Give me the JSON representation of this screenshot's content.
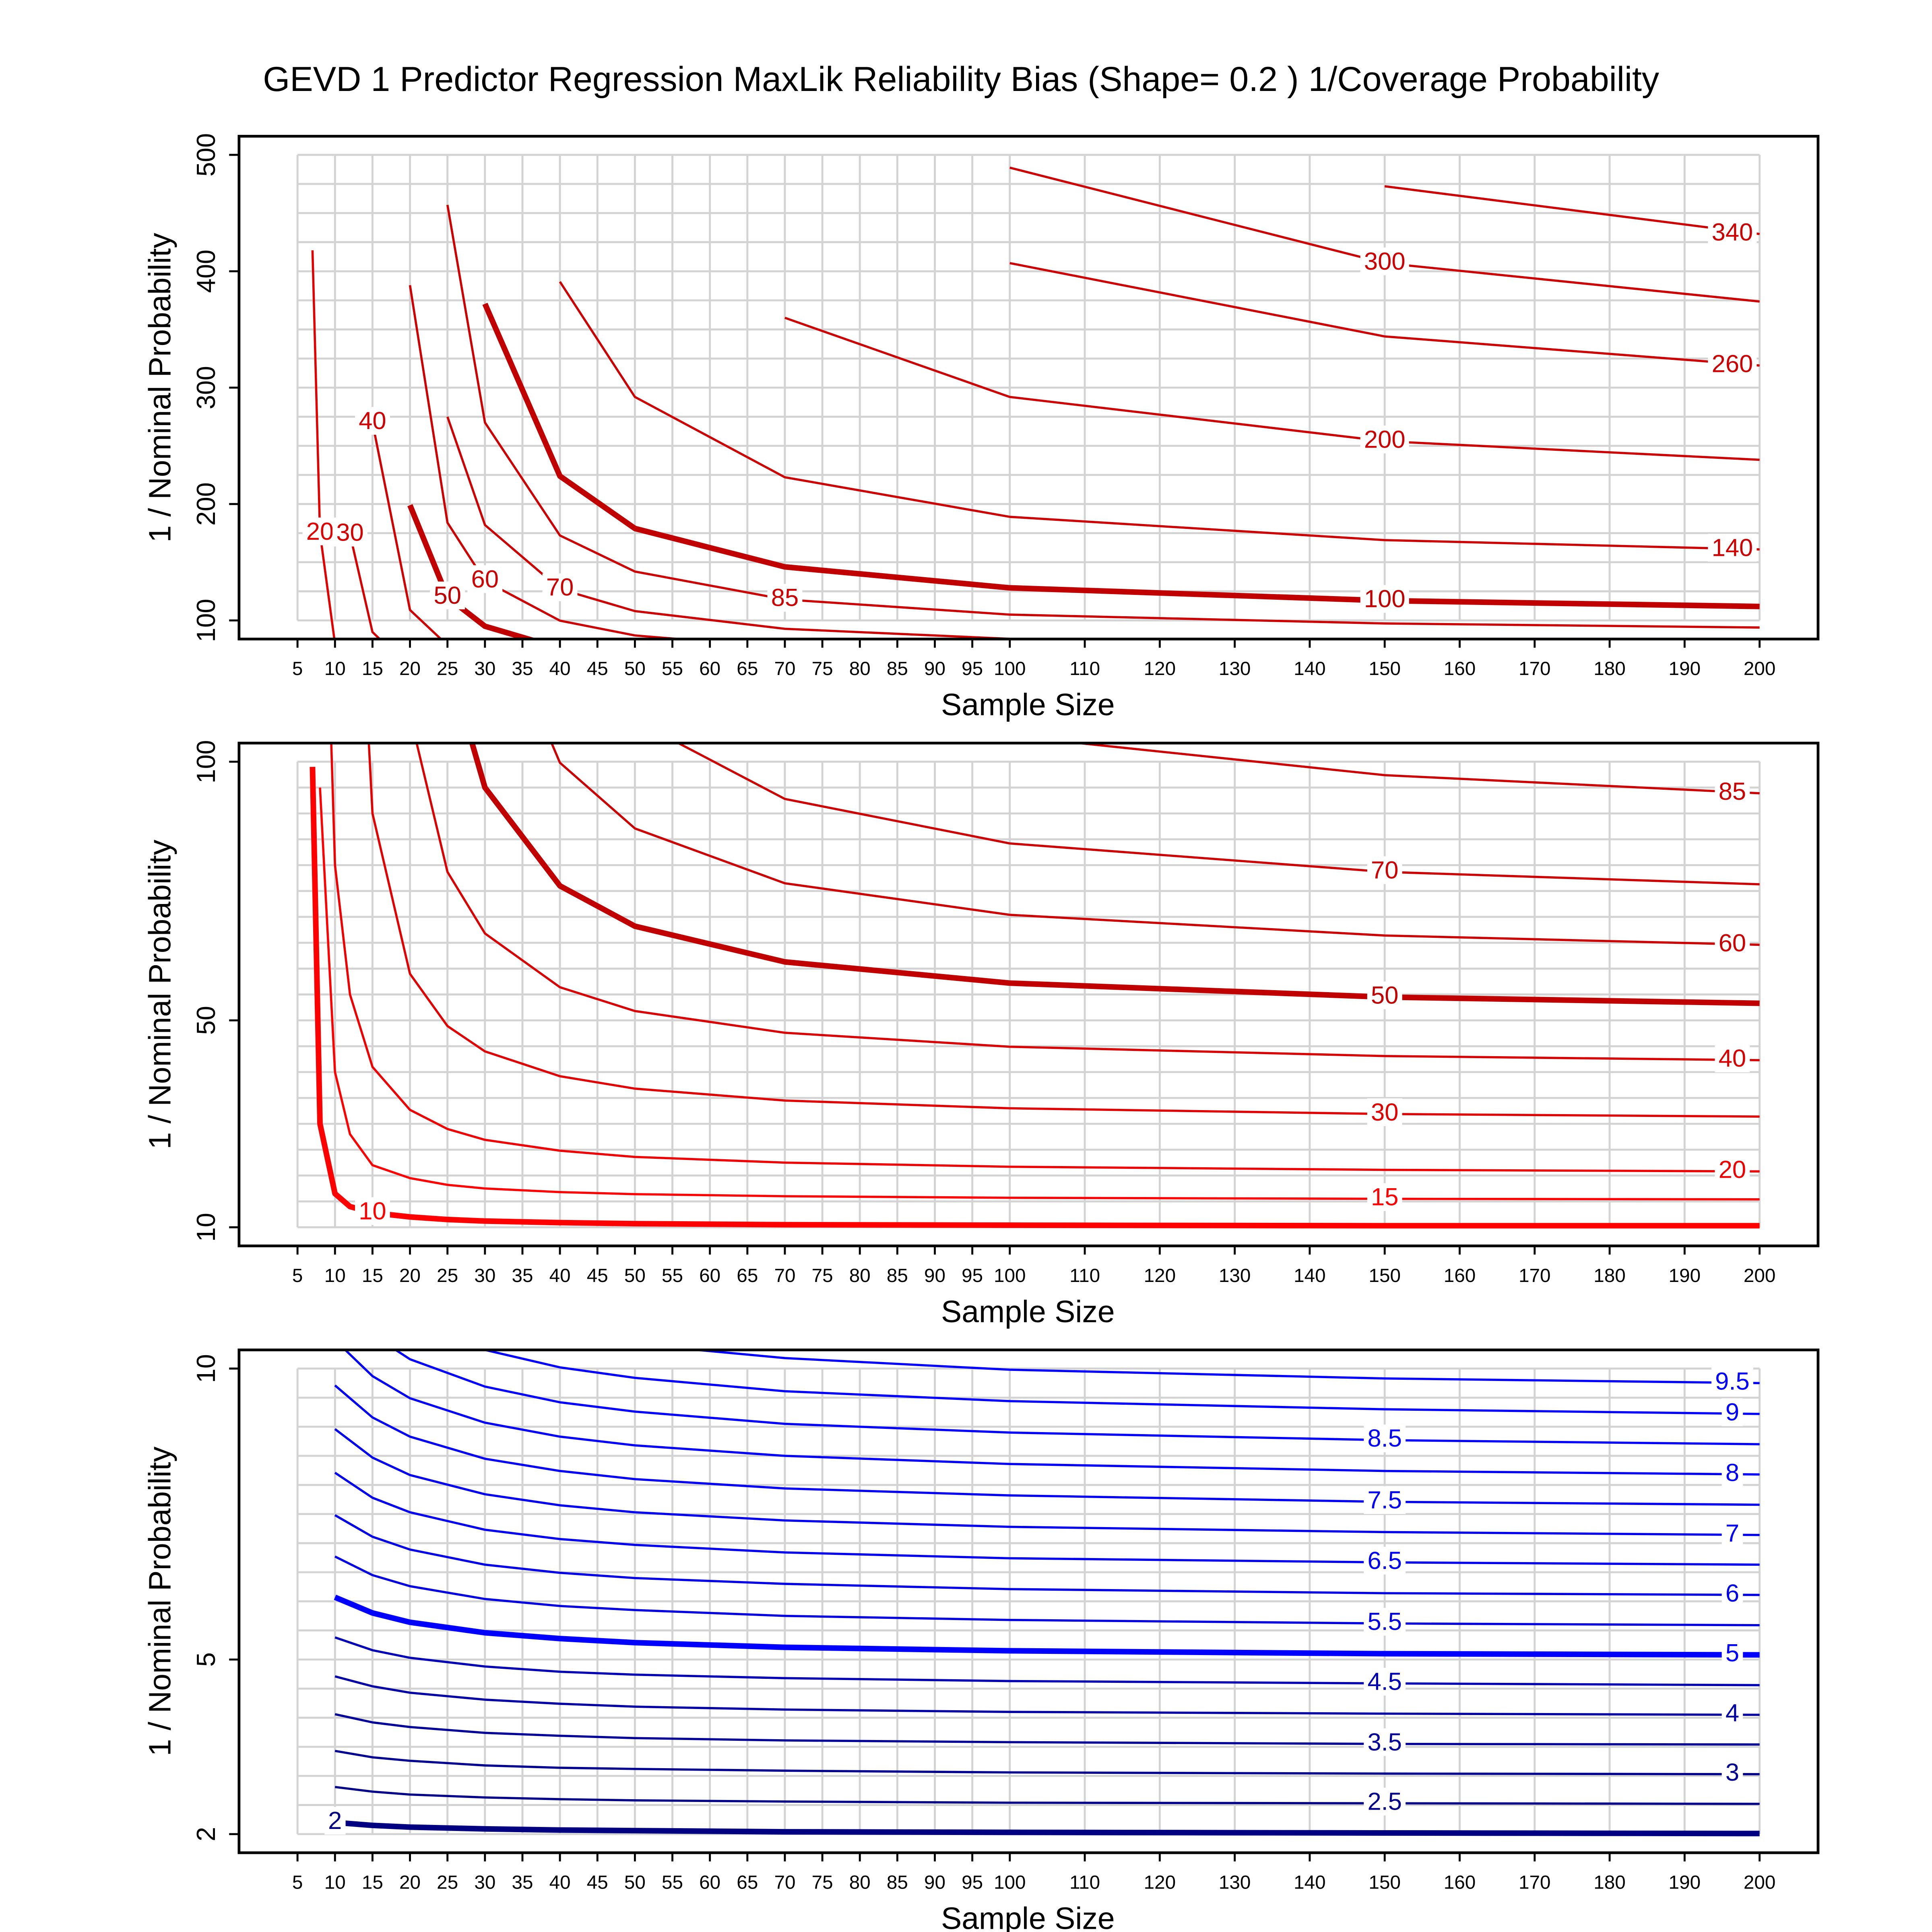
{
  "chart_data": [
    {
      "type": "contour",
      "title": "GEVD 1 Predictor Regression MaxLik Reliability Bias (Shape= 0.2 ) 1/Coverage Probability",
      "xlabel": "Sample Size",
      "ylabel": "1 / Nominal Probability",
      "xlim": [
        -2.8,
        207.8
      ],
      "ylim": [
        84,
        516
      ],
      "xticks": [
        5,
        10,
        15,
        20,
        25,
        30,
        35,
        40,
        45,
        50,
        55,
        60,
        65,
        70,
        75,
        80,
        85,
        90,
        95,
        100,
        110,
        120,
        130,
        140,
        150,
        160,
        170,
        180,
        190,
        200
      ],
      "yticks": [
        100,
        200,
        300,
        400,
        500
      ],
      "grid": true,
      "ygrid": [
        100,
        125,
        150,
        175,
        200,
        225,
        250,
        275,
        300,
        325,
        350,
        375,
        400,
        425,
        450,
        475,
        500
      ],
      "x": [
        7,
        8,
        10,
        12,
        15,
        20,
        25,
        30,
        40,
        50,
        70,
        100,
        150,
        200
      ],
      "contours": [
        {
          "level": 20,
          "color": "#e00000",
          "thick": false,
          "values": [
            418,
            175,
            80,
            55,
            41,
            32.7,
            29,
            26.9,
            24.8,
            23.6,
            22.5,
            21.7,
            21.1,
            20.8
          ]
        },
        {
          "level": 30,
          "color": "#d40000",
          "thick": false,
          "values": [
            null,
            null,
            null,
            174,
            90,
            59,
            48.9,
            44,
            39.2,
            36.8,
            34.5,
            33,
            31.9,
            31.4
          ]
        },
        {
          "level": 40,
          "color": "#d00000",
          "thick": false,
          "values": [
            null,
            null,
            null,
            null,
            270,
            109,
            78.7,
            66.8,
            56.4,
            51.8,
            47.6,
            44.9,
            43.1,
            42.3
          ]
        },
        {
          "level": 50,
          "color": "#c00000",
          "thick": true,
          "values": [
            null,
            null,
            null,
            null,
            null,
            199,
            120,
            95,
            76,
            68.2,
            61.3,
            57.2,
            54.5,
            53.3
          ]
        },
        {
          "level": 60,
          "color": "#cc0000",
          "thick": false,
          "values": [
            null,
            null,
            null,
            null,
            null,
            388,
            184,
            134,
            99.8,
            87.1,
            76.5,
            70.4,
            66.4,
            64.6
          ]
        },
        {
          "level": 70,
          "color": "#cc0000",
          "thick": false,
          "values": [
            null,
            null,
            null,
            null,
            null,
            null,
            275,
            182,
            127,
            108,
            92.8,
            84.2,
            78.7,
            76.3
          ]
        },
        {
          "level": 85,
          "color": "#cc0000",
          "thick": false,
          "values": [
            null,
            null,
            null,
            null,
            null,
            null,
            457,
            270,
            173,
            142,
            118,
            105,
            97.4,
            93.9
          ]
        },
        {
          "level": 100,
          "color": "#c00000",
          "thick": true,
          "values": [
            null,
            null,
            null,
            null,
            null,
            null,
            null,
            372,
            224,
            179,
            146,
            128,
            117,
            112
          ]
        },
        {
          "level": 140,
          "color": "#cc0000",
          "thick": false,
          "values": [
            null,
            null,
            null,
            null,
            null,
            null,
            null,
            null,
            391,
            292,
            223,
            189,
            169,
            161
          ]
        },
        {
          "level": 200,
          "color": "#cc0000",
          "thick": false,
          "values": [
            null,
            null,
            null,
            null,
            null,
            null,
            null,
            null,
            null,
            null,
            360,
            292,
            254,
            238
          ]
        },
        {
          "level": 260,
          "color": "#cc0000",
          "thick": false,
          "values": [
            null,
            null,
            null,
            null,
            null,
            null,
            null,
            null,
            null,
            null,
            null,
            407,
            344,
            319
          ]
        },
        {
          "level": 300,
          "color": "#cc0000",
          "thick": false,
          "values": [
            null,
            null,
            null,
            null,
            null,
            null,
            null,
            null,
            null,
            null,
            null,
            489,
            407,
            374
          ]
        },
        {
          "level": 340,
          "color": "#cc0000",
          "thick": false,
          "values": [
            null,
            null,
            null,
            null,
            null,
            null,
            null,
            null,
            null,
            null,
            null,
            null,
            473,
            432
          ]
        }
      ]
    },
    {
      "type": "contour",
      "xlabel": "Sample Size",
      "ylabel": "1 / Nominal Probability",
      "xlim": [
        -2.8,
        207.8
      ],
      "ylim": [
        6.4,
        103.6
      ],
      "xticks": [
        5,
        10,
        15,
        20,
        25,
        30,
        35,
        40,
        45,
        50,
        55,
        60,
        65,
        70,
        75,
        80,
        85,
        90,
        95,
        100,
        110,
        120,
        130,
        140,
        150,
        160,
        170,
        180,
        190,
        200
      ],
      "yticks": [
        10,
        50,
        100
      ],
      "grid": true,
      "ygrid": [
        10,
        15,
        20,
        25,
        30,
        35,
        40,
        45,
        50,
        55,
        60,
        65,
        70,
        75,
        80,
        85,
        90,
        95,
        100
      ],
      "x": [
        7,
        8,
        10,
        12,
        15,
        20,
        25,
        30,
        40,
        50,
        70,
        100,
        150,
        200
      ],
      "contours": [
        {
          "level": 10,
          "color": "#ff0000",
          "thick": true,
          "values": [
            99,
            30,
            16.5,
            14,
            12.8,
            12,
            11.5,
            11.2,
            10.9,
            10.7,
            10.5,
            10.4,
            10.3,
            10.3
          ]
        },
        {
          "level": 15,
          "color": "#ff0000",
          "thick": false,
          "values": [
            null,
            95,
            40,
            28,
            22,
            19.5,
            18.2,
            17.5,
            16.8,
            16.4,
            16,
            15.7,
            15.5,
            15.4
          ]
        },
        {
          "level": 20,
          "color": "#ee0000",
          "thick": false,
          "values": [
            418,
            175,
            80,
            55,
            41,
            32.7,
            29,
            26.9,
            24.8,
            23.6,
            22.5,
            21.7,
            21.1,
            20.8
          ]
        },
        {
          "level": 30,
          "color": "#e00000",
          "thick": false,
          "values": [
            null,
            null,
            null,
            174,
            90,
            59,
            48.9,
            44,
            39.2,
            36.8,
            34.5,
            33,
            31.9,
            31.4
          ]
        },
        {
          "level": 40,
          "color": "#d80000",
          "thick": false,
          "values": [
            null,
            null,
            null,
            null,
            270,
            109,
            78.7,
            66.8,
            56.4,
            51.8,
            47.6,
            44.9,
            43.1,
            42.3
          ]
        },
        {
          "level": 50,
          "color": "#c00000",
          "thick": true,
          "values": [
            null,
            null,
            null,
            null,
            null,
            199,
            120,
            95,
            76,
            68.2,
            61.3,
            57.2,
            54.5,
            53.3
          ]
        },
        {
          "level": 60,
          "color": "#cc0000",
          "thick": false,
          "values": [
            null,
            null,
            null,
            null,
            null,
            388,
            184,
            134,
            99.8,
            87.1,
            76.5,
            70.4,
            66.4,
            64.6
          ]
        },
        {
          "level": 70,
          "color": "#cc0000",
          "thick": false,
          "values": [
            null,
            null,
            null,
            null,
            null,
            null,
            275,
            182,
            127,
            108,
            92.8,
            84.2,
            78.7,
            76.3
          ]
        },
        {
          "level": 85,
          "color": "#cc0000",
          "thick": false,
          "values": [
            null,
            null,
            null,
            null,
            null,
            null,
            457,
            270,
            173,
            142,
            118,
            105,
            97.4,
            93.9
          ]
        }
      ]
    },
    {
      "type": "contour",
      "xlabel": "Sample Size",
      "ylabel": "1 / Nominal Probability",
      "xlim": [
        -2.8,
        207.8
      ],
      "ylim": [
        1.68,
        10.32
      ],
      "xticks": [
        5,
        10,
        15,
        20,
        25,
        30,
        35,
        40,
        45,
        50,
        55,
        60,
        65,
        70,
        75,
        80,
        85,
        90,
        95,
        100,
        110,
        120,
        130,
        140,
        150,
        160,
        170,
        180,
        190,
        200
      ],
      "yticks": [
        2,
        5,
        10
      ],
      "grid": true,
      "ygrid": [
        2,
        2.5,
        3,
        3.5,
        4,
        4.5,
        5,
        5.5,
        6,
        6.5,
        7,
        7.5,
        8,
        8.5,
        9,
        9.5,
        10
      ],
      "x": [
        10,
        15,
        20,
        30,
        40,
        50,
        70,
        100,
        150,
        200
      ],
      "contours": [
        {
          "level": 2,
          "color": "#000080",
          "thick": true,
          "values": [
            2.2,
            2.15,
            2.12,
            2.09,
            2.07,
            2.06,
            2.04,
            2.03,
            2.02,
            2.01
          ]
        },
        {
          "level": 2.5,
          "color": "#000088",
          "thick": false,
          "values": [
            2.81,
            2.73,
            2.68,
            2.63,
            2.6,
            2.58,
            2.56,
            2.54,
            2.53,
            2.52
          ]
        },
        {
          "level": 3,
          "color": "#000090",
          "thick": false,
          "values": [
            3.43,
            3.32,
            3.26,
            3.18,
            3.14,
            3.12,
            3.09,
            3.06,
            3.04,
            3.03
          ]
        },
        {
          "level": 3.5,
          "color": "#000099",
          "thick": false,
          "values": [
            4.06,
            3.92,
            3.84,
            3.74,
            3.69,
            3.65,
            3.61,
            3.58,
            3.55,
            3.54
          ]
        },
        {
          "level": 4,
          "color": "#0000a4",
          "thick": false,
          "values": [
            4.71,
            4.54,
            4.43,
            4.31,
            4.24,
            4.19,
            4.14,
            4.1,
            4.07,
            4.05
          ]
        },
        {
          "level": 4.5,
          "color": "#0000b4",
          "thick": false,
          "values": [
            5.38,
            5.16,
            5.03,
            4.88,
            4.79,
            4.74,
            4.68,
            4.63,
            4.59,
            4.56
          ]
        },
        {
          "level": 5,
          "color": "#0000ff",
          "thick": true,
          "values": [
            6.07,
            5.8,
            5.64,
            5.46,
            5.36,
            5.29,
            5.21,
            5.15,
            5.1,
            5.08
          ]
        },
        {
          "level": 5.5,
          "color": "#0000e0",
          "thick": false,
          "values": [
            6.77,
            6.45,
            6.26,
            6.04,
            5.92,
            5.85,
            5.75,
            5.68,
            5.62,
            5.59
          ]
        },
        {
          "level": 6,
          "color": "#0000e8",
          "thick": false,
          "values": [
            7.48,
            7.11,
            6.89,
            6.63,
            6.49,
            6.4,
            6.3,
            6.21,
            6.14,
            6.11
          ]
        },
        {
          "level": 6.5,
          "color": "#0000f0",
          "thick": false,
          "values": [
            8.21,
            7.78,
            7.53,
            7.23,
            7.07,
            6.97,
            6.84,
            6.74,
            6.67,
            6.63
          ]
        },
        {
          "level": 7,
          "color": "#0000f0",
          "thick": false,
          "values": [
            8.96,
            8.47,
            8.17,
            7.84,
            7.65,
            7.53,
            7.39,
            7.28,
            7.19,
            7.14
          ]
        },
        {
          "level": 7.5,
          "color": "#0000f4",
          "thick": false,
          "values": [
            9.71,
            9.16,
            8.83,
            8.45,
            8.24,
            8.1,
            7.94,
            7.82,
            7.71,
            7.66
          ]
        },
        {
          "level": 8,
          "color": "#0000f8",
          "thick": false,
          "values": [
            10.49,
            9.87,
            9.49,
            9.07,
            8.83,
            8.68,
            8.5,
            8.36,
            8.24,
            8.18
          ]
        },
        {
          "level": 8.5,
          "color": "#0000ff",
          "thick": false,
          "values": [
            11.27,
            10.58,
            10.16,
            9.69,
            9.42,
            9.26,
            9.05,
            8.9,
            8.77,
            8.7
          ]
        },
        {
          "level": 9,
          "color": "#0000ff",
          "thick": false,
          "values": [
            12.07,
            11.3,
            10.84,
            10.32,
            10.02,
            9.84,
            9.61,
            9.44,
            9.3,
            9.22
          ]
        },
        {
          "level": 9.5,
          "color": "#0000ff",
          "thick": false,
          "values": [
            12.89,
            12.04,
            11.53,
            10.95,
            10.63,
            10.42,
            10.18,
            9.98,
            9.83,
            9.75
          ]
        }
      ]
    }
  ]
}
